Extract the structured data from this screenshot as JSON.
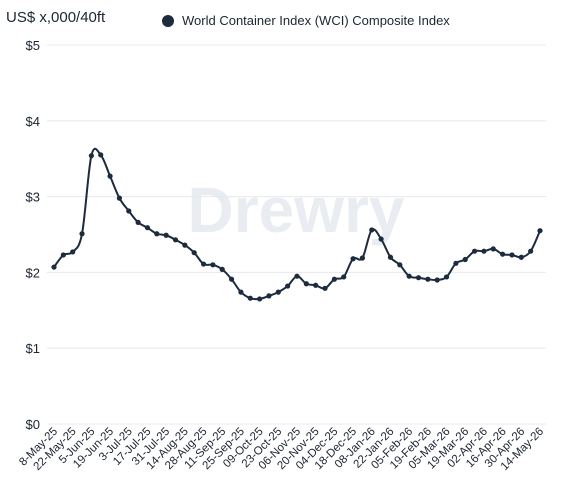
{
  "chart_data": {
    "type": "line",
    "y_axis_label": "US$ x,000/40ft",
    "watermark": "Drewry",
    "categories": [
      "8-May-25",
      null,
      "22-May-25",
      null,
      "5-Jun-25",
      null,
      "19-Jun-25",
      null,
      "3-Jul-25",
      null,
      "17-Jul-25",
      null,
      "31-Jul-25",
      null,
      "14-Aug-25",
      null,
      "28-Aug-25",
      null,
      "11-Sep-25",
      null,
      "25-Sep-25",
      null,
      "09-Oct-25",
      null,
      "23-Oct-25",
      null,
      "06-Nov-25",
      null,
      "20-Nov-25",
      null,
      "04-Dec-25",
      null,
      "18-Dec-25",
      null,
      "08-Jan-26",
      null,
      "22-Jan-26",
      null,
      "05-Feb-26",
      null,
      "19-Feb-26",
      null,
      "05-Mar-26",
      null,
      "19-Mar-26",
      null,
      "02-Apr-26",
      null,
      "16-Apr-26",
      null,
      "30-Apr-26",
      null,
      "14-May-26"
    ],
    "series": [
      {
        "name": "World Container Index (WCI) Composite Index",
        "color": "#1c2b3e",
        "values": [
          2.07,
          2.23,
          2.27,
          2.51,
          3.54,
          3.55,
          3.27,
          2.98,
          2.81,
          2.66,
          2.59,
          2.51,
          2.49,
          2.43,
          2.36,
          2.26,
          2.11,
          2.1,
          2.04,
          1.91,
          1.74,
          1.66,
          1.65,
          1.69,
          1.74,
          1.82,
          1.95,
          1.85,
          1.83,
          1.79,
          1.91,
          1.94,
          2.18,
          2.19,
          2.56,
          2.44,
          2.2,
          2.1,
          1.95,
          1.93,
          1.91,
          1.9,
          1.94,
          2.12,
          2.17,
          2.28,
          2.28,
          2.31,
          2.24,
          2.23,
          2.2,
          2.28,
          2.55
        ]
      }
    ],
    "ylim": [
      0,
      5
    ],
    "yticks": [
      {
        "value": 0,
        "label": "$0"
      },
      {
        "value": 1,
        "label": "$1"
      },
      {
        "value": 2,
        "label": "$2"
      },
      {
        "value": 3,
        "label": "$3"
      },
      {
        "value": 4,
        "label": "$4"
      },
      {
        "value": 5,
        "label": "$5"
      }
    ],
    "grid": true
  }
}
